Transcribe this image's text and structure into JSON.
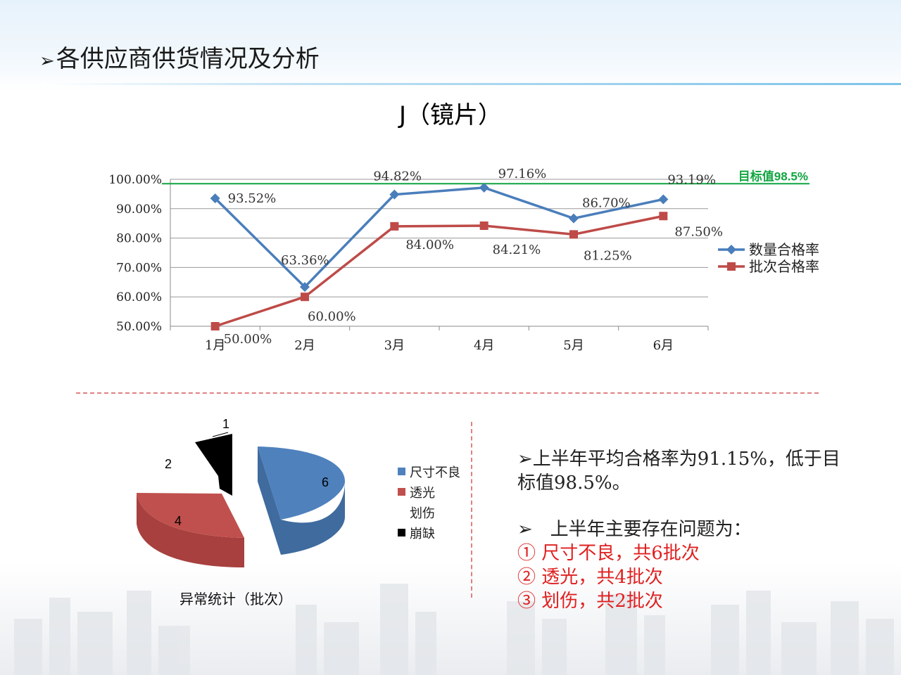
{
  "heading": "各供应商供货情况及分析",
  "chart_data": [
    {
      "type": "line",
      "title": "J（镜片）",
      "categories": [
        "1月",
        "2月",
        "3月",
        "4月",
        "5月",
        "6月"
      ],
      "series": [
        {
          "name": "数量合格率",
          "values": [
            93.52,
            63.36,
            94.82,
            97.16,
            86.7,
            93.19
          ],
          "labels": [
            "93.52%",
            "63.36%",
            "94.82%",
            "97.16%",
            "86.70%",
            "93.19%"
          ],
          "color": "#4a7ebb"
        },
        {
          "name": "批次合格率",
          "values": [
            50.0,
            60.0,
            84.0,
            84.21,
            81.25,
            87.5
          ],
          "labels": [
            "50.00%",
            "60.00%",
            "84.00%",
            "84.21%",
            "81.25%",
            "87.50%"
          ],
          "color": "#be4b48"
        }
      ],
      "yticks": [
        "100.00%",
        "90.00%",
        "80.00%",
        "70.00%",
        "60.00%",
        "50.00%"
      ],
      "ylim": [
        50,
        100
      ],
      "target": {
        "value": 98.5,
        "label": "目标值98.5%",
        "color": "#10a540"
      },
      "grid": true,
      "legend": "right"
    },
    {
      "type": "pie",
      "title": "异常统计（批次）",
      "labels": [
        "尺寸不良",
        "透光",
        "划伤",
        "崩缺"
      ],
      "values": [
        6,
        4,
        2,
        1
      ],
      "colors": [
        "#4f81bd",
        "#c0504d",
        "#ffffff",
        "#000000"
      ],
      "legend": "right"
    }
  ],
  "summary": {
    "line1": "上半年平均合格率为91.15%，低于目标值98.5%。",
    "line2": "上半年主要存在问题为：",
    "items": [
      "①  尺寸不良，共6批次",
      "②  透光，共4批次",
      "③  划伤，共2批次"
    ]
  }
}
